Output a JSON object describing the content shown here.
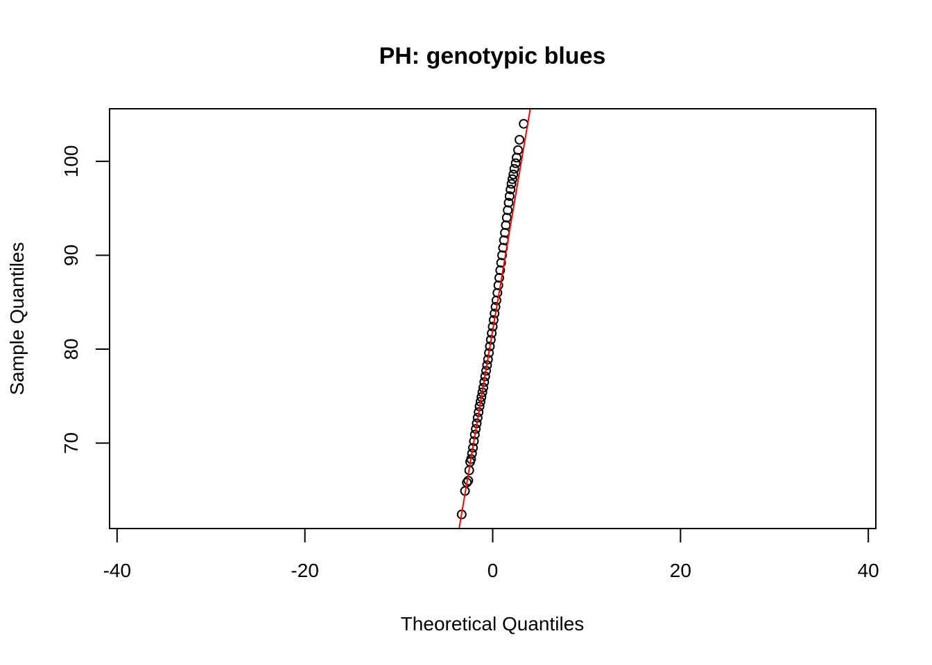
{
  "chart_data": {
    "type": "scatter",
    "title": "PH: genotypic blues",
    "xlabel": "Theoretical Quantiles",
    "ylabel": "Sample Quantiles",
    "xlim": [
      -40.8,
      40.8
    ],
    "ylim": [
      60.9,
      105.6
    ],
    "x_ticks": [
      -40,
      -20,
      0,
      20,
      40
    ],
    "y_ticks": [
      70,
      80,
      90,
      100
    ],
    "grid": false,
    "legend": "none",
    "point_color": "#000000",
    "line_color": "#ff0000",
    "reference_line": {
      "intercept": 82.0,
      "slope": 5.9
    },
    "series": [
      {
        "x": [
          -3.3,
          -2.95,
          -2.75,
          -2.6,
          -2.5,
          -2.4,
          -2.3,
          -2.2,
          -2.1,
          -2.0,
          -1.9,
          -1.8,
          -1.7,
          -1.6,
          -1.5,
          -1.4,
          -1.3,
          -1.2,
          -1.1,
          -1.0,
          -0.9,
          -0.8,
          -0.7,
          -0.6,
          -0.5,
          -0.4,
          -0.3,
          -0.2,
          -0.1,
          0.0,
          0.1,
          0.2,
          0.3,
          0.4,
          0.5,
          0.6,
          0.7,
          0.8,
          0.9,
          1.0,
          1.1,
          1.2,
          1.3,
          1.4,
          1.5,
          1.6,
          1.7,
          1.8,
          1.9,
          2.0,
          2.1,
          2.2,
          2.3,
          2.45,
          2.55,
          2.7,
          2.85,
          3.3
        ],
        "y": [
          62.4,
          64.9,
          65.8,
          66.0,
          67.1,
          68.0,
          68.3,
          68.9,
          69.5,
          70.2,
          70.9,
          71.5,
          72.1,
          72.7,
          73.3,
          73.9,
          74.4,
          74.9,
          75.4,
          75.9,
          76.5,
          77.1,
          77.7,
          78.3,
          78.9,
          79.6,
          80.3,
          81.0,
          81.7,
          82.4,
          83.1,
          83.8,
          84.5,
          85.2,
          86.0,
          86.8,
          87.6,
          88.4,
          89.2,
          90.0,
          90.8,
          91.6,
          92.4,
          93.2,
          94.0,
          94.8,
          95.6,
          96.3,
          97.0,
          97.6,
          98.1,
          98.6,
          99.2,
          99.8,
          100.4,
          101.2,
          102.3,
          104.0
        ]
      }
    ]
  }
}
